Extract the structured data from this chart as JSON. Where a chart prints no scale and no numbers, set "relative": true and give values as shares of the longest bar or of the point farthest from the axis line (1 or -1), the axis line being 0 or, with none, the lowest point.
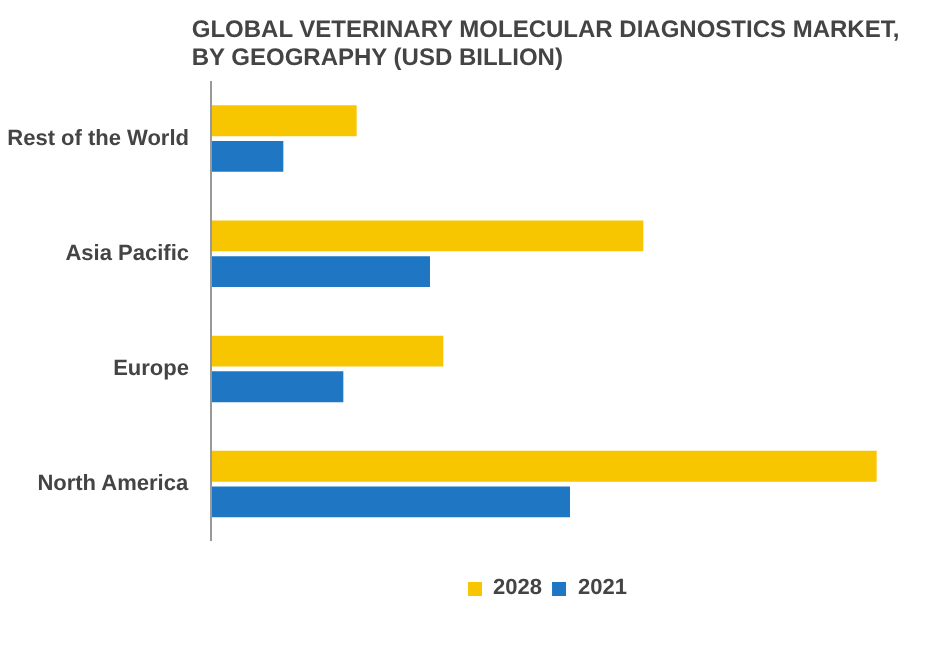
{
  "chart_data": {
    "type": "bar",
    "title": "GLOBAL VETERINARY MOLECULAR DIAGNOSTICS MARKET,\nBY GEOGRAPHY (USD BILLION)",
    "orientation": "horizontal",
    "relative": true,
    "legend": "bottom",
    "categories": [
      "Rest of the World",
      "Asia Pacific",
      "Europe",
      "North America"
    ],
    "series": [
      {
        "name": "2028",
        "color": "#f7c600",
        "values": [
          0.22,
          0.65,
          0.35,
          1
        ]
      },
      {
        "name": "2021",
        "color": "#1f77c4",
        "values": [
          0.11,
          0.33,
          0.2,
          0.54
        ]
      }
    ]
  }
}
